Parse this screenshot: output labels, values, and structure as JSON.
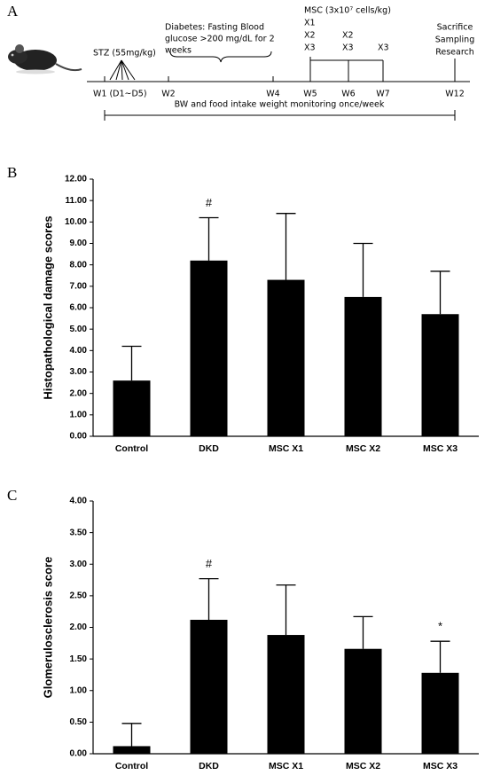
{
  "panel_labels": [
    "A",
    "B",
    "C"
  ],
  "timeline": {
    "stz": "STZ (55mg/kg)",
    "weeks": [
      "W1 (D1~D5)",
      "W2",
      "W4",
      "W5",
      "W6",
      "W7",
      "W12"
    ],
    "diabetes": [
      "Diabetes: Fasting Blood",
      "glucose >200 mg/dL for 2",
      "weeks"
    ],
    "msc": "MSC  (3x10⁷ cells/kg)",
    "w5_doses": [
      "X1",
      "X2",
      "X3"
    ],
    "w6_doses": [
      "X2",
      "X3"
    ],
    "w7_doses": [
      "X3"
    ],
    "end": [
      "Sacrifice",
      "Sampling",
      "Research"
    ],
    "monitoring": "BW and food intake weight monitoring once/week"
  },
  "chart_data": [
    {
      "type": "bar",
      "y_label": "Histopathological damage scores",
      "categories": [
        "Control",
        "DKD",
        "MSC X1",
        "MSC X2",
        "MSC X3"
      ],
      "values": [
        2.6,
        8.2,
        7.3,
        6.5,
        5.7
      ],
      "errors": [
        1.6,
        2.0,
        3.1,
        2.5,
        2.0
      ],
      "markers": [
        null,
        "#",
        null,
        null,
        null
      ],
      "color": "#000000",
      "ylim": [
        0,
        12
      ],
      "yticks": [
        {
          "value": 0,
          "label": "0.00"
        },
        {
          "value": 1,
          "label": "1.00"
        },
        {
          "value": 2,
          "label": "2.00"
        },
        {
          "value": 3,
          "label": "3.00"
        },
        {
          "value": 4,
          "label": "4.00"
        },
        {
          "value": 5,
          "label": "5.00"
        },
        {
          "value": 6,
          "label": "6.00"
        },
        {
          "value": 7,
          "label": "7.00"
        },
        {
          "value": 8,
          "label": "8.00"
        },
        {
          "value": 9,
          "label": "9.00"
        },
        {
          "value": 10,
          "label": "10.00"
        },
        {
          "value": 11,
          "label": "11.00"
        },
        {
          "value": 12,
          "label": "12.00"
        }
      ],
      "grid": false
    },
    {
      "type": "bar",
      "y_label": "Glomerulosclerosis score",
      "categories": [
        "Control",
        "DKD",
        "MSC X1",
        "MSC X2",
        "MSC X3"
      ],
      "values": [
        0.12,
        2.12,
        1.88,
        1.66,
        1.28
      ],
      "errors": [
        0.36,
        0.65,
        0.79,
        0.51,
        0.5
      ],
      "markers": [
        null,
        "#",
        null,
        null,
        "*"
      ],
      "color": "#000000",
      "ylim": [
        0,
        4
      ],
      "yticks": [
        {
          "value": 0,
          "label": "0.00"
        },
        {
          "value": 0.5,
          "label": "0.50"
        },
        {
          "value": 1,
          "label": "1.00"
        },
        {
          "value": 1.5,
          "label": "1.50"
        },
        {
          "value": 2,
          "label": "2.00"
        },
        {
          "value": 2.5,
          "label": "2.50"
        },
        {
          "value": 3,
          "label": "3.00"
        },
        {
          "value": 3.5,
          "label": "3.50"
        },
        {
          "value": 4,
          "label": "4.00"
        }
      ],
      "grid": false
    }
  ]
}
